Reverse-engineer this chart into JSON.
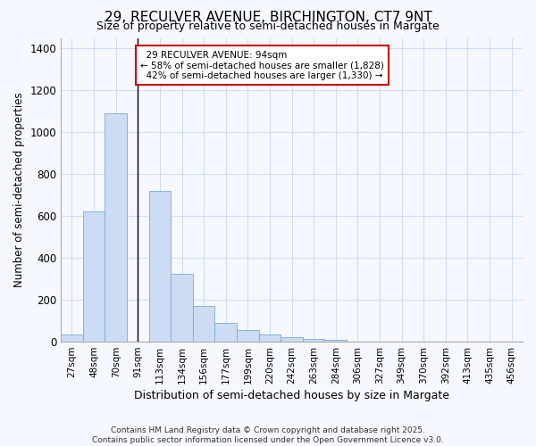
{
  "title": "29, RECULVER AVENUE, BIRCHINGTON, CT7 9NT",
  "subtitle": "Size of property relative to semi-detached houses in Margate",
  "xlabel": "Distribution of semi-detached houses by size in Margate",
  "ylabel": "Number of semi-detached properties",
  "bin_labels": [
    "27sqm",
    "48sqm",
    "70sqm",
    "91sqm",
    "113sqm",
    "134sqm",
    "156sqm",
    "177sqm",
    "199sqm",
    "220sqm",
    "242sqm",
    "263sqm",
    "284sqm",
    "306sqm",
    "327sqm",
    "349sqm",
    "370sqm",
    "392sqm",
    "413sqm",
    "435sqm",
    "456sqm"
  ],
  "bar_heights": [
    35,
    620,
    1090,
    0,
    720,
    325,
    170,
    90,
    55,
    35,
    20,
    15,
    10,
    0,
    0,
    0,
    0,
    0,
    0,
    0,
    0
  ],
  "bar_color": "#ccdcf5",
  "bar_edge_color": "#7aaad0",
  "vline_label_idx": 3,
  "property_label": "29 RECULVER AVENUE: 94sqm",
  "pct_smaller": 58,
  "pct_larger": 42,
  "count_smaller": 1828,
  "count_larger": 1330,
  "annotation_box_color": "#ffffff",
  "annotation_box_edge": "#cc0000",
  "background_color": "#f5f8ff",
  "grid_color": "#d0ddf5",
  "ylim": [
    0,
    1450
  ],
  "yticks": [
    0,
    200,
    400,
    600,
    800,
    1000,
    1200,
    1400
  ],
  "footer_line1": "Contains HM Land Registry data © Crown copyright and database right 2025.",
  "footer_line2": "Contains public sector information licensed under the Open Government Licence v3.0."
}
